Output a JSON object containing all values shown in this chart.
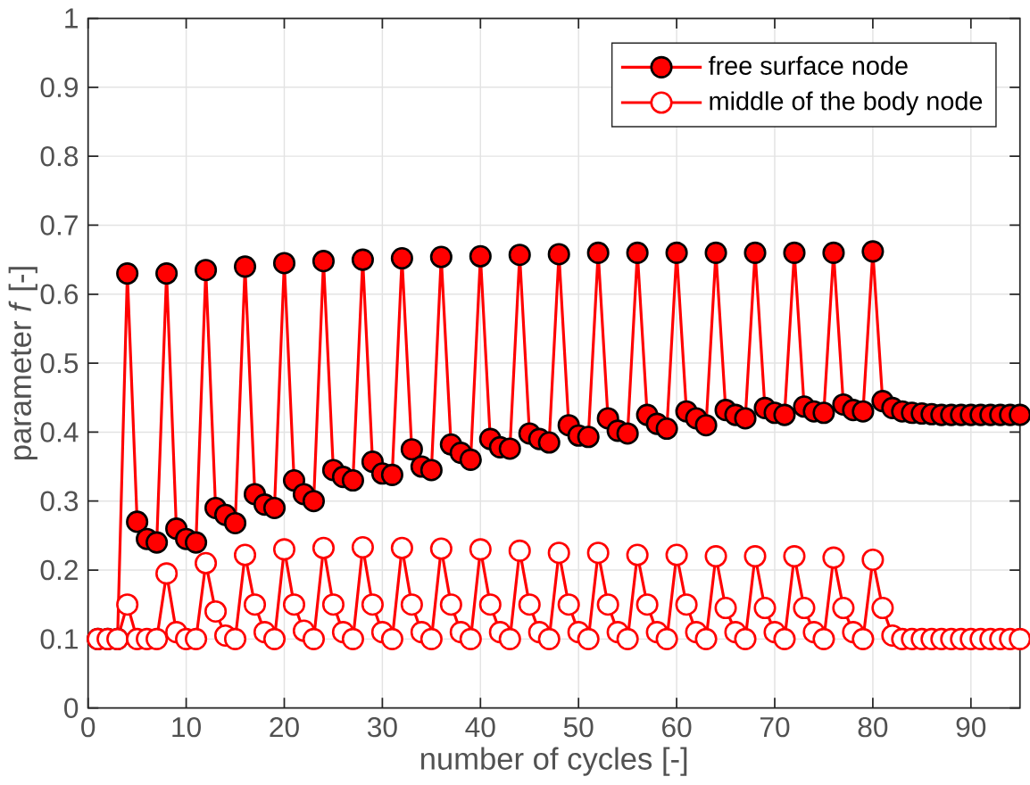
{
  "chart_data": {
    "type": "line",
    "xlabel": "number of cycles [-]",
    "ylabel": "parameter *f* [-]",
    "x": [
      1,
      2,
      3,
      4,
      5,
      6,
      7,
      8,
      9,
      10,
      11,
      12,
      13,
      14,
      15,
      16,
      17,
      18,
      19,
      20,
      21,
      22,
      23,
      24,
      25,
      26,
      27,
      28,
      29,
      30,
      31,
      32,
      33,
      34,
      35,
      36,
      37,
      38,
      39,
      40,
      41,
      42,
      43,
      44,
      45,
      46,
      47,
      48,
      49,
      50,
      51,
      52,
      53,
      54,
      55,
      56,
      57,
      58,
      59,
      60,
      61,
      62,
      63,
      64,
      65,
      66,
      67,
      68,
      69,
      70,
      71,
      72,
      73,
      74,
      75,
      76,
      77,
      78,
      79,
      80,
      81,
      82,
      83,
      84,
      85,
      86,
      87,
      88,
      89,
      90,
      91,
      92,
      93,
      94,
      95
    ],
    "series": [
      {
        "name": "free surface node",
        "color": "#ff0000",
        "values": [
          0.1,
          0.1,
          0.1,
          0.63,
          0.27,
          0.245,
          0.24,
          0.63,
          0.26,
          0.245,
          0.24,
          0.635,
          0.29,
          0.28,
          0.268,
          0.64,
          0.31,
          0.295,
          0.29,
          0.645,
          0.33,
          0.31,
          0.3,
          0.648,
          0.345,
          0.335,
          0.33,
          0.65,
          0.357,
          0.34,
          0.338,
          0.652,
          0.375,
          0.35,
          0.345,
          0.654,
          0.382,
          0.37,
          0.36,
          0.655,
          0.39,
          0.378,
          0.376,
          0.657,
          0.398,
          0.39,
          0.385,
          0.658,
          0.41,
          0.395,
          0.393,
          0.66,
          0.42,
          0.402,
          0.398,
          0.66,
          0.425,
          0.412,
          0.405,
          0.66,
          0.43,
          0.42,
          0.41,
          0.66,
          0.432,
          0.425,
          0.42,
          0.66,
          0.435,
          0.428,
          0.425,
          0.66,
          0.437,
          0.43,
          0.428,
          0.66,
          0.44,
          0.432,
          0.43,
          0.662,
          0.445,
          0.435,
          0.43,
          0.428,
          0.427,
          0.426,
          0.425,
          0.425,
          0.425,
          0.425,
          0.425,
          0.425,
          0.425,
          0.425,
          0.425
        ]
      },
      {
        "name": "middle of the body node",
        "color": "#ff0000",
        "values": [
          0.1,
          0.1,
          0.1,
          0.15,
          0.1,
          0.1,
          0.1,
          0.195,
          0.11,
          0.1,
          0.1,
          0.21,
          0.14,
          0.105,
          0.1,
          0.222,
          0.15,
          0.11,
          0.1,
          0.23,
          0.15,
          0.112,
          0.1,
          0.232,
          0.15,
          0.11,
          0.1,
          0.233,
          0.15,
          0.11,
          0.1,
          0.232,
          0.15,
          0.11,
          0.1,
          0.231,
          0.15,
          0.11,
          0.1,
          0.23,
          0.15,
          0.11,
          0.1,
          0.228,
          0.15,
          0.11,
          0.1,
          0.225,
          0.15,
          0.11,
          0.1,
          0.225,
          0.15,
          0.11,
          0.1,
          0.222,
          0.15,
          0.11,
          0.1,
          0.222,
          0.15,
          0.11,
          0.1,
          0.22,
          0.145,
          0.11,
          0.1,
          0.22,
          0.145,
          0.11,
          0.1,
          0.22,
          0.145,
          0.11,
          0.1,
          0.218,
          0.145,
          0.11,
          0.1,
          0.215,
          0.145,
          0.105,
          0.1,
          0.1,
          0.1,
          0.1,
          0.1,
          0.1,
          0.1,
          0.1,
          0.1,
          0.1,
          0.1,
          0.1,
          0.1
        ]
      }
    ],
    "xlim": [
      0,
      95
    ],
    "ylim": [
      0,
      1
    ],
    "xticks": [
      0,
      10,
      20,
      30,
      40,
      50,
      60,
      70,
      80,
      90
    ],
    "yticks": [
      0,
      0.1,
      0.2,
      0.3,
      0.4,
      0.5,
      0.6,
      0.7,
      0.8,
      0.9,
      1
    ],
    "grid": true,
    "legend": "top right",
    "marker": "circle",
    "line_style": "solid"
  }
}
